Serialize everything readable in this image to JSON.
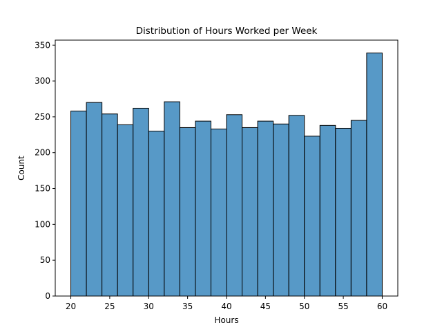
{
  "chart_data": {
    "type": "bar",
    "title": "Distribution of Hours Worked per Week",
    "xlabel": "Hours",
    "ylabel": "Count",
    "xlim": [
      18,
      62
    ],
    "ylim": [
      0,
      357
    ],
    "xticks": [
      20,
      25,
      30,
      35,
      40,
      45,
      50,
      55,
      60
    ],
    "yticks": [
      0,
      50,
      100,
      150,
      200,
      250,
      300,
      350
    ],
    "bin_edges": [
      20,
      22,
      24,
      26,
      28,
      30,
      32,
      34,
      36,
      38,
      40,
      42,
      44,
      46,
      48,
      50,
      52,
      54,
      56,
      58,
      60
    ],
    "values": [
      258,
      270,
      254,
      239,
      262,
      230,
      271,
      235,
      244,
      233,
      253,
      235,
      244,
      240,
      252,
      223,
      238,
      234,
      245,
      339
    ],
    "bar_color": "#5799c7",
    "edge_color": "#000000",
    "grid": false
  }
}
